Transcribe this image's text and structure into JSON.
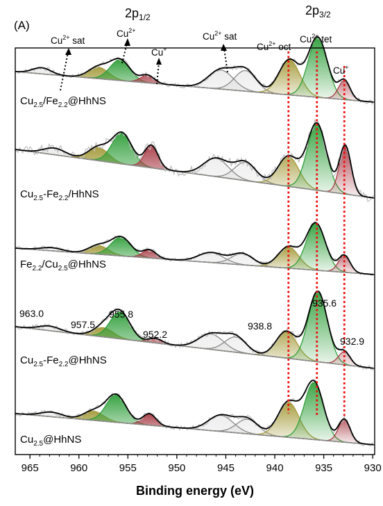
{
  "chart_data": {
    "type": "line",
    "panel_label": "(A)",
    "xlabel": "Binding energy (eV)",
    "xlim": [
      966.5,
      929.8
    ],
    "x_ticks": [
      965,
      960,
      955,
      950,
      945,
      940,
      935,
      930
    ],
    "x_reversed": true,
    "colors": {
      "sat": "#888888",
      "oct": "#a49a3a",
      "tet": "#2f9e3a",
      "cu1": "#a83c46",
      "envelope": "#000000",
      "raw": "#bdbdbd",
      "guide": "#ee1111"
    },
    "header_labels": [
      "2p1/2",
      "2p3/2"
    ],
    "annotations": [
      "Cu2+ sat",
      "Cu2+",
      "Cu+",
      "Cu2+ sat",
      "Cu2+ oct",
      "Cu2+ tet",
      "Cu+"
    ],
    "reference_lines_eV": [
      938.6,
      935.7,
      932.9
    ],
    "peak_value_labels": [
      "963.0",
      "957.5",
      "955.8",
      "952.2",
      "938.8",
      "935.6",
      "932.9"
    ],
    "series": [
      {
        "name": "Cu2.5/Fe2.2@HhNS",
        "peaks": [
          {
            "type": "sat",
            "center": 963.8,
            "height": 0.08,
            "fwhm": 2.2
          },
          {
            "type": "oct",
            "center": 958.0,
            "height": 0.15,
            "fwhm": 2.4
          },
          {
            "type": "tet",
            "center": 955.8,
            "height": 0.27,
            "fwhm": 2.4
          },
          {
            "type": "cu1",
            "center": 953.0,
            "height": 0.1,
            "fwhm": 1.6
          },
          {
            "type": "sat",
            "center": 945.5,
            "height": 0.25,
            "fwhm": 3.0
          },
          {
            "type": "sat",
            "center": 943.0,
            "height": 0.27,
            "fwhm": 2.6
          },
          {
            "type": "oct",
            "center": 938.5,
            "height": 0.46,
            "fwhm": 2.5
          },
          {
            "type": "tet",
            "center": 935.6,
            "height": 0.78,
            "fwhm": 2.3
          },
          {
            "type": "cu1",
            "center": 932.9,
            "height": 0.25,
            "fwhm": 1.4
          }
        ]
      },
      {
        "name": "Cu2.5-Fe2.2/HhNS",
        "peaks": [
          {
            "type": "sat",
            "center": 962.5,
            "height": 0.08,
            "fwhm": 2.6
          },
          {
            "type": "oct",
            "center": 958.0,
            "height": 0.16,
            "fwhm": 2.4
          },
          {
            "type": "tet",
            "center": 955.6,
            "height": 0.37,
            "fwhm": 2.4
          },
          {
            "type": "cu1",
            "center": 952.6,
            "height": 0.27,
            "fwhm": 1.6
          },
          {
            "type": "sat",
            "center": 946.0,
            "height": 0.22,
            "fwhm": 3.0
          },
          {
            "type": "sat",
            "center": 943.0,
            "height": 0.22,
            "fwhm": 2.6
          },
          {
            "type": "oct",
            "center": 938.6,
            "height": 0.36,
            "fwhm": 2.5
          },
          {
            "type": "tet",
            "center": 935.7,
            "height": 0.8,
            "fwhm": 2.3
          },
          {
            "type": "cu1",
            "center": 932.8,
            "height": 0.58,
            "fwhm": 1.4
          }
        ]
      },
      {
        "name": "Fe2.2/Cu2.5@HhNS",
        "peaks": [
          {
            "type": "sat",
            "center": 962.8,
            "height": 0.05,
            "fwhm": 2.6
          },
          {
            "type": "oct",
            "center": 958.0,
            "height": 0.14,
            "fwhm": 2.4
          },
          {
            "type": "tet",
            "center": 955.7,
            "height": 0.3,
            "fwhm": 2.4
          },
          {
            "type": "cu1",
            "center": 952.8,
            "height": 0.13,
            "fwhm": 1.6
          },
          {
            "type": "sat",
            "center": 946.5,
            "height": 0.16,
            "fwhm": 3.0
          },
          {
            "type": "sat",
            "center": 943.3,
            "height": 0.18,
            "fwhm": 2.6
          },
          {
            "type": "oct",
            "center": 938.6,
            "height": 0.34,
            "fwhm": 2.5
          },
          {
            "type": "tet",
            "center": 935.8,
            "height": 0.75,
            "fwhm": 2.3
          },
          {
            "type": "cu1",
            "center": 932.9,
            "height": 0.27,
            "fwhm": 1.4
          }
        ]
      },
      {
        "name": "Cu2.5-Fe2.2@HhNS",
        "peaks": [
          {
            "type": "sat",
            "center": 963.0,
            "height": 0.06,
            "fwhm": 2.6
          },
          {
            "type": "oct",
            "center": 957.5,
            "height": 0.12,
            "fwhm": 2.4
          },
          {
            "type": "tet",
            "center": 955.8,
            "height": 0.35,
            "fwhm": 2.4
          },
          {
            "type": "cu1",
            "center": 952.2,
            "height": 0.06,
            "fwhm": 1.6
          },
          {
            "type": "sat",
            "center": 946.5,
            "height": 0.2,
            "fwhm": 3.0
          },
          {
            "type": "sat",
            "center": 944.0,
            "height": 0.2,
            "fwhm": 2.6
          },
          {
            "type": "oct",
            "center": 938.8,
            "height": 0.35,
            "fwhm": 2.5
          },
          {
            "type": "tet",
            "center": 935.6,
            "height": 0.92,
            "fwhm": 2.3
          },
          {
            "type": "cu1",
            "center": 932.9,
            "height": 0.17,
            "fwhm": 1.4
          }
        ]
      },
      {
        "name": "Cu2.5@HhNS",
        "peaks": [
          {
            "type": "sat",
            "center": 962.8,
            "height": 0.06,
            "fwhm": 2.6
          },
          {
            "type": "oct",
            "center": 958.5,
            "height": 0.12,
            "fwhm": 2.4
          },
          {
            "type": "tet",
            "center": 956.2,
            "height": 0.36,
            "fwhm": 2.4
          },
          {
            "type": "cu1",
            "center": 952.8,
            "height": 0.15,
            "fwhm": 1.6
          },
          {
            "type": "sat",
            "center": 945.5,
            "height": 0.21,
            "fwhm": 3.0
          },
          {
            "type": "sat",
            "center": 942.8,
            "height": 0.19,
            "fwhm": 2.6
          },
          {
            "type": "oct",
            "center": 938.6,
            "height": 0.46,
            "fwhm": 2.5
          },
          {
            "type": "tet",
            "center": 936.0,
            "height": 0.75,
            "fwhm": 2.3
          },
          {
            "type": "cu1",
            "center": 932.9,
            "height": 0.3,
            "fwhm": 1.4
          }
        ]
      }
    ]
  }
}
